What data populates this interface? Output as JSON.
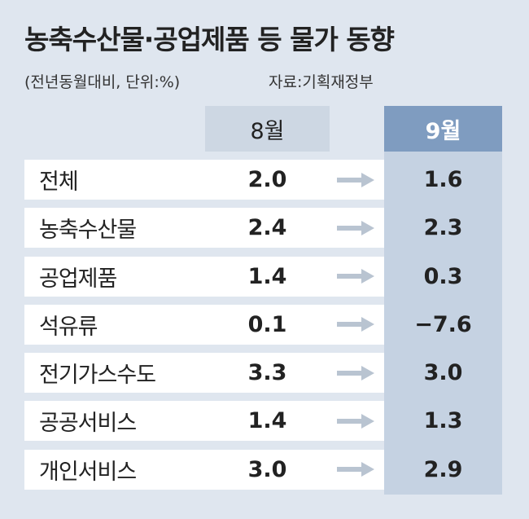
{
  "header": {
    "title": "농축수산물·공업제품 등 물가 동향",
    "subtitle": "(전년동월대비, 단위:%)",
    "source": "자료:기획재정부"
  },
  "table": {
    "columns": [
      "8월",
      "9월"
    ],
    "rows": [
      [
        "전체",
        "2.0",
        "1.6"
      ],
      [
        "농축수산물",
        "2.4",
        "2.3"
      ],
      [
        "공업제품",
        "1.4",
        "0.3"
      ],
      [
        "석유류",
        "0.1",
        "−7.6"
      ],
      [
        "전기가스수도",
        "3.3",
        "3.0"
      ],
      [
        "공공서비스",
        "1.4",
        "1.3"
      ],
      [
        "개인서비스",
        "3.0",
        "2.9"
      ]
    ]
  }
}
